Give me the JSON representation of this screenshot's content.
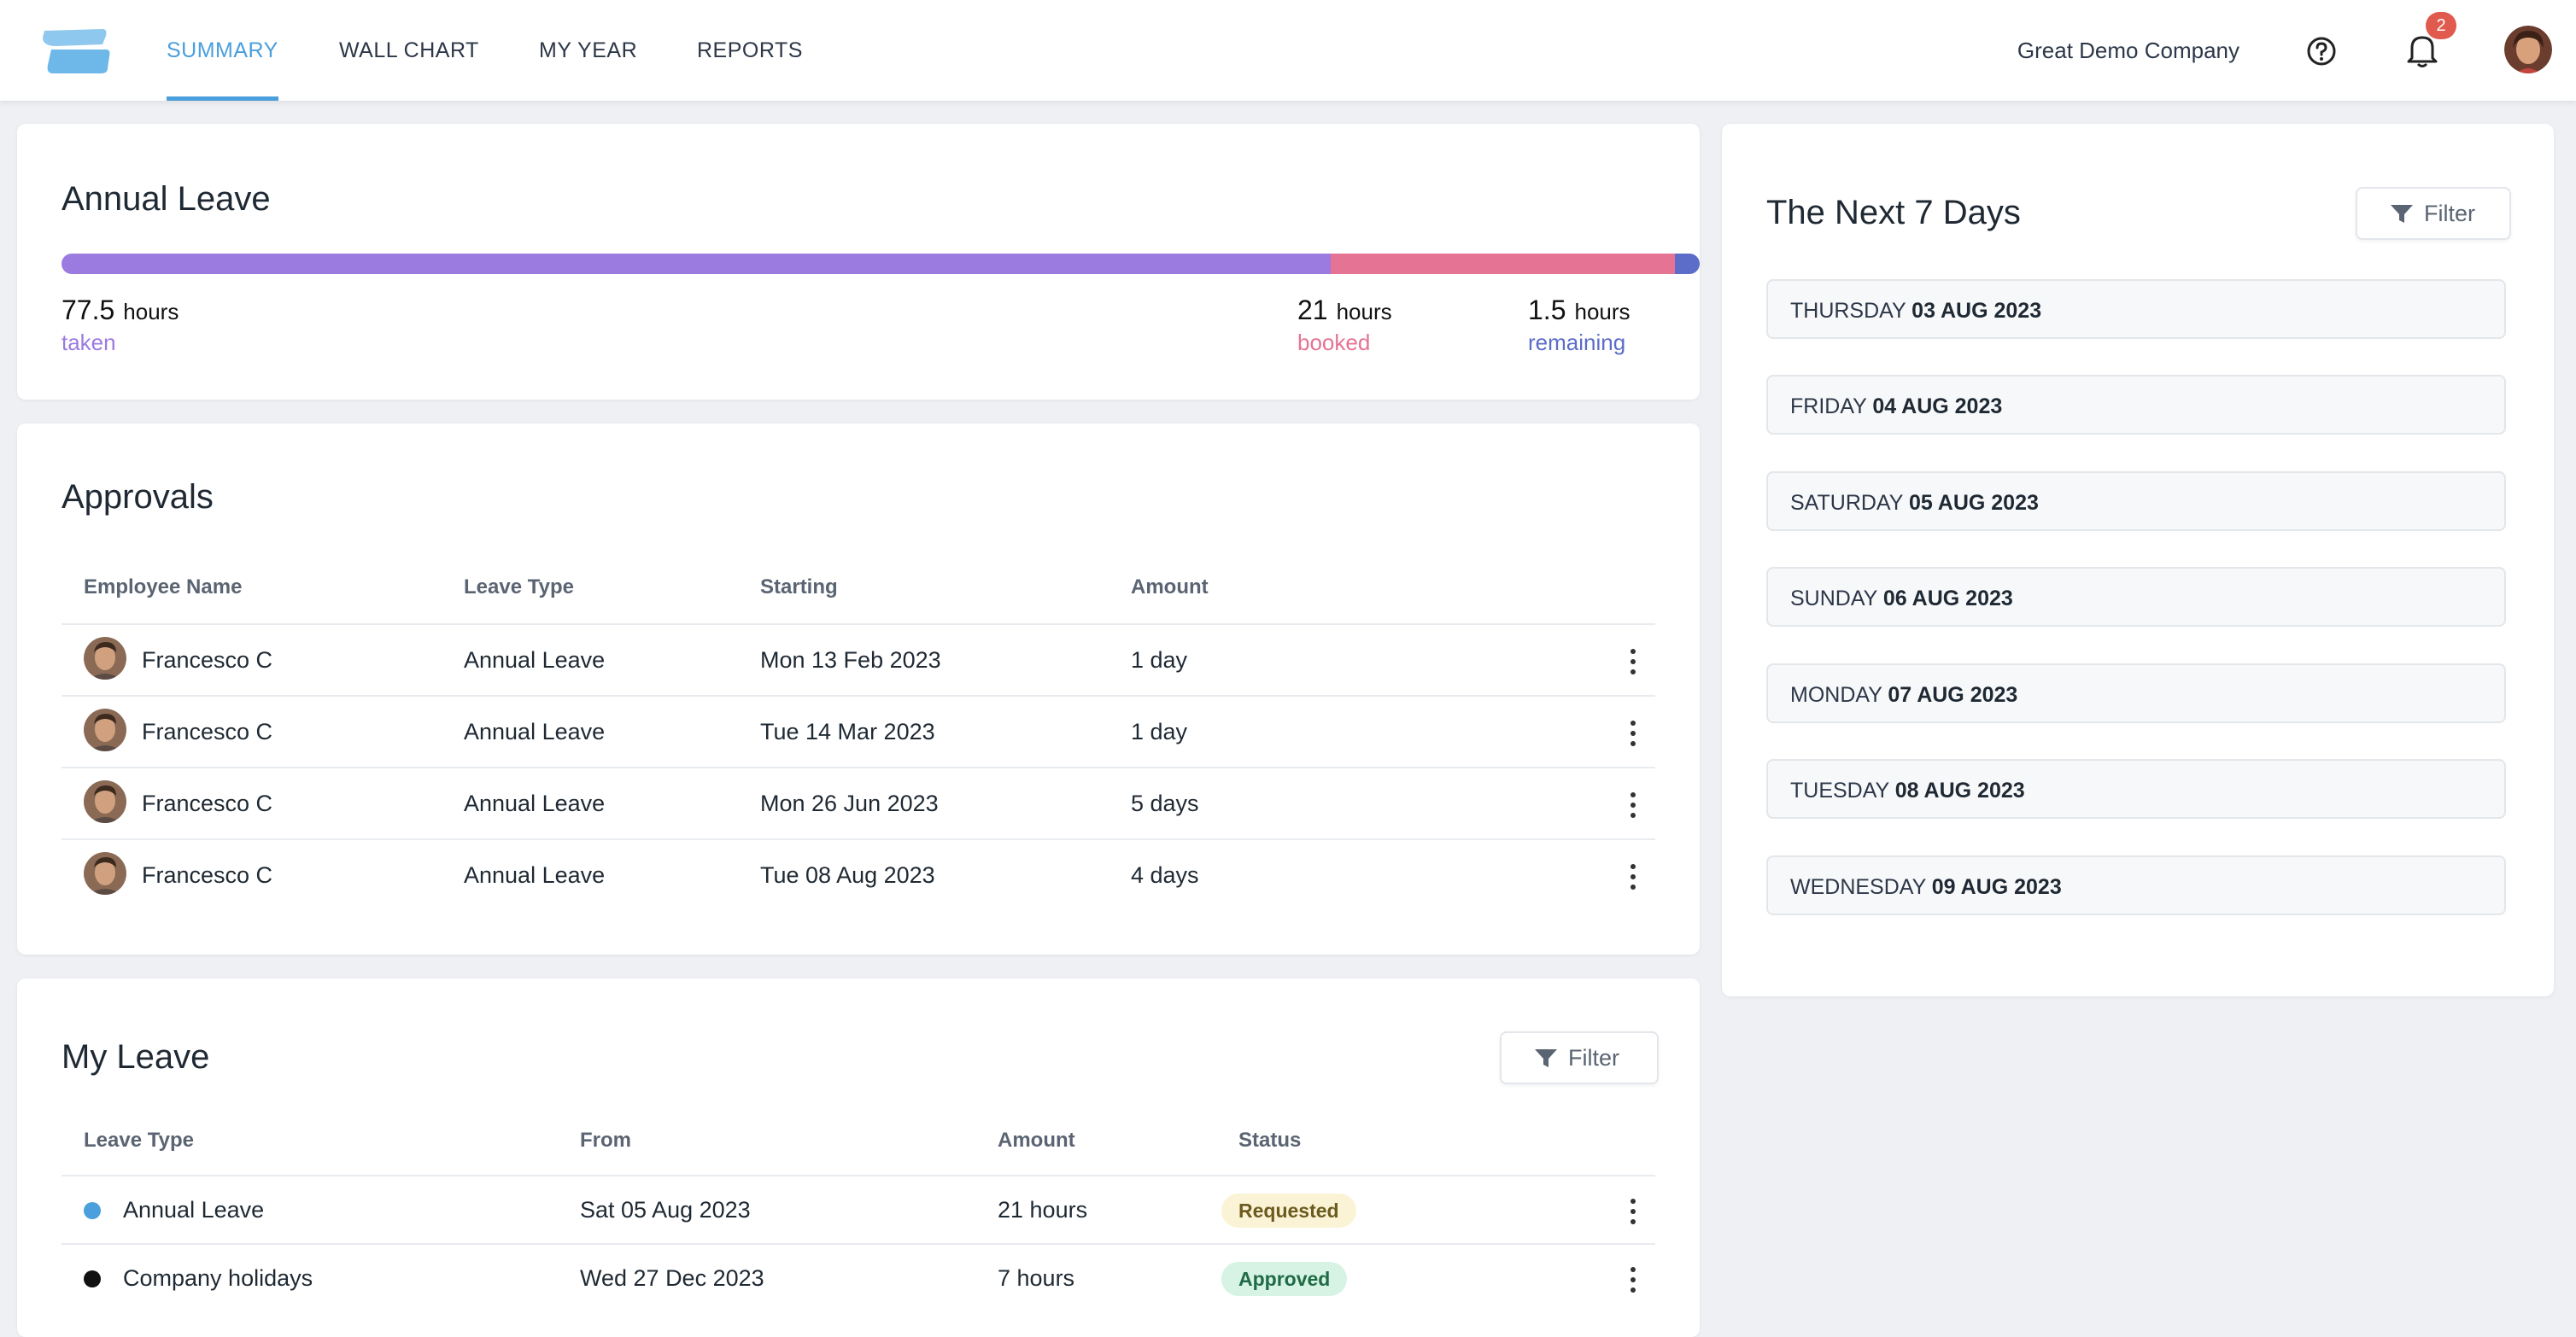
{
  "nav": {
    "tabs": [
      "SUMMARY",
      "WALL CHART",
      "MY YEAR",
      "REPORTS"
    ],
    "active": "SUMMARY",
    "company": "Great Demo Company",
    "notification_count": "2"
  },
  "annual_leave": {
    "title": "Annual Leave",
    "taken": {
      "value": "77.5",
      "unit": "hours",
      "label": "taken",
      "hours": 77.5
    },
    "booked": {
      "value": "21",
      "unit": "hours",
      "label": "booked",
      "hours": 21
    },
    "remaining": {
      "value": "1.5",
      "unit": "hours",
      "label": "remaining",
      "hours": 1.5
    },
    "colors": {
      "taken": "#9b7be0",
      "booked": "#e57393",
      "remaining": "#5c6cc9"
    }
  },
  "approvals": {
    "title": "Approvals",
    "columns": [
      "Employee Name",
      "Leave Type",
      "Starting",
      "Amount"
    ],
    "rows": [
      {
        "name": "Francesco C",
        "type": "Annual Leave",
        "starting": "Mon 13 Feb 2023",
        "amount": "1 day"
      },
      {
        "name": "Francesco C",
        "type": "Annual Leave",
        "starting": "Tue 14 Mar 2023",
        "amount": "1 day"
      },
      {
        "name": "Francesco C",
        "type": "Annual Leave",
        "starting": "Mon 26 Jun 2023",
        "amount": "5 days"
      },
      {
        "name": "Francesco C",
        "type": "Annual Leave",
        "starting": "Tue 08 Aug 2023",
        "amount": "4 days"
      }
    ]
  },
  "my_leave": {
    "title": "My Leave",
    "filter_label": "Filter",
    "columns": [
      "Leave Type",
      "From",
      "Amount",
      "Status"
    ],
    "rows": [
      {
        "type": "Annual Leave",
        "from": "Sat 05 Aug 2023",
        "amount": "21 hours",
        "status": "Requested",
        "dot_color": "#4a9fdc",
        "status_bg": "#fbf3d5",
        "status_fg": "#6b5b1e"
      },
      {
        "type": "Company holidays",
        "from": "Wed 27 Dec 2023",
        "amount": "7 hours",
        "status": "Approved",
        "dot_color": "#111111",
        "status_bg": "#d6f3e4",
        "status_fg": "#1f6b45"
      }
    ]
  },
  "next_days": {
    "title": "The Next 7 Days",
    "filter_label": "Filter",
    "days": [
      {
        "weekday": "THURSDAY",
        "date": "03 AUG 2023"
      },
      {
        "weekday": "FRIDAY",
        "date": "04 AUG 2023"
      },
      {
        "weekday": "SATURDAY",
        "date": "05 AUG 2023"
      },
      {
        "weekday": "SUNDAY",
        "date": "06 AUG 2023"
      },
      {
        "weekday": "MONDAY",
        "date": "07 AUG 2023"
      },
      {
        "weekday": "TUESDAY",
        "date": "08 AUG 2023"
      },
      {
        "weekday": "WEDNESDAY",
        "date": "09 AUG 2023"
      }
    ]
  }
}
